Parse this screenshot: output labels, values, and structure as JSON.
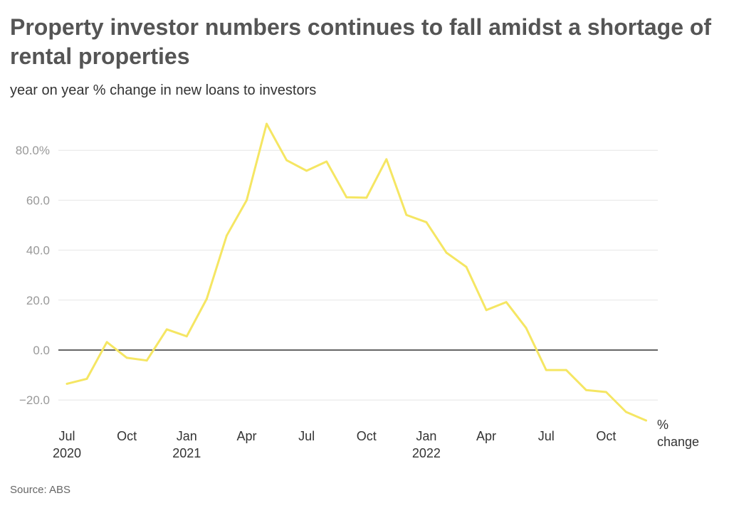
{
  "title": "Property investor numbers continues to fall amidst a shortage of rental properties",
  "subtitle": "year on year % change in new loans to investors",
  "source": "Source: ABS",
  "chart_data": {
    "type": "line",
    "title": "Property investor numbers continues to fall amidst a shortage of rental properties",
    "subtitle": "year on year % change in new loans to investors",
    "xlabel": "",
    "ylabel": "",
    "unit_label": [
      "%",
      "change"
    ],
    "ylim": [
      -30,
      95
    ],
    "y_ticks": [
      {
        "value": -20,
        "label": "−20.0"
      },
      {
        "value": 0,
        "label": "0.0"
      },
      {
        "value": 20,
        "label": "20.0"
      },
      {
        "value": 40,
        "label": "40.0"
      },
      {
        "value": 60,
        "label": "60.0"
      },
      {
        "value": 80,
        "label": "80.0%"
      }
    ],
    "x_ticks": [
      {
        "month": "2020-07",
        "label": "Jul",
        "year": "2020"
      },
      {
        "month": "2020-10",
        "label": "Oct",
        "year": ""
      },
      {
        "month": "2021-01",
        "label": "Jan",
        "year": "2021"
      },
      {
        "month": "2021-04",
        "label": "Apr",
        "year": ""
      },
      {
        "month": "2021-07",
        "label": "Jul",
        "year": ""
      },
      {
        "month": "2021-10",
        "label": "Oct",
        "year": ""
      },
      {
        "month": "2022-01",
        "label": "Jan",
        "year": "2022"
      },
      {
        "month": "2022-04",
        "label": "Apr",
        "year": ""
      },
      {
        "month": "2022-07",
        "label": "Jul",
        "year": ""
      },
      {
        "month": "2022-10",
        "label": "Oct",
        "year": ""
      }
    ],
    "grid": true,
    "zero_line": true,
    "line_color": "#f5e663",
    "series": [
      {
        "name": "",
        "x": [
          "2020-07",
          "2020-08",
          "2020-09",
          "2020-10",
          "2020-11",
          "2020-12",
          "2021-01",
          "2021-02",
          "2021-03",
          "2021-04",
          "2021-05",
          "2021-06",
          "2021-07",
          "2021-08",
          "2021-09",
          "2021-10",
          "2021-11",
          "2021-12",
          "2022-01",
          "2022-02",
          "2022-03",
          "2022-04",
          "2022-05",
          "2022-06",
          "2022-07",
          "2022-08",
          "2022-09",
          "2022-10",
          "2022-11",
          "2022-12"
        ],
        "values": [
          -13.5,
          -11.5,
          3.2,
          -3.1,
          -4.2,
          8.3,
          5.5,
          20.5,
          45.8,
          60.0,
          90.6,
          76.0,
          71.8,
          75.5,
          61.2,
          61.0,
          76.4,
          54.1,
          51.2,
          39.0,
          33.3,
          16.0,
          19.2,
          8.8,
          -8.0,
          -8.0,
          -16.0,
          -16.8,
          -24.8,
          -28.2
        ]
      }
    ]
  }
}
